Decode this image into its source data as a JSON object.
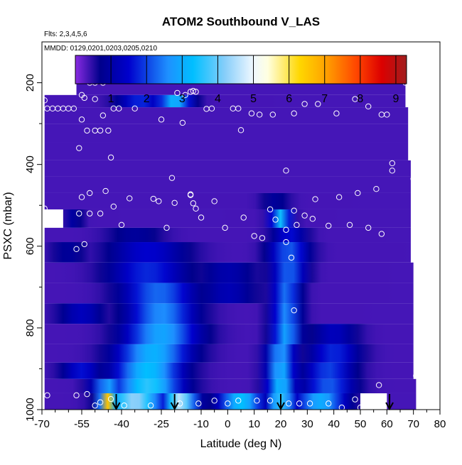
{
  "chart_data": {
    "type": "heatmap",
    "title": "ATOM2 Southbound V_LAS",
    "flights_note": "Flts: 2,3,4,5,6",
    "dates_note": "MMDD: 0129,0201,0203,0205,0210",
    "xlabel": "Latitude (deg N)",
    "ylabel": "PSXC (mbar)",
    "xlim": [
      -70,
      80
    ],
    "ylim": [
      1000,
      100
    ],
    "y_reversed": true,
    "x_ticks": [
      -70,
      -55,
      -40,
      -25,
      -10,
      0,
      10,
      20,
      30,
      40,
      50,
      60,
      70,
      80
    ],
    "x_tick_labels": [
      "-70",
      "-55",
      "-40",
      "-25",
      "-10",
      "0",
      "10",
      "20",
      "30",
      "40",
      "50",
      "60",
      "70",
      "80"
    ],
    "x_minor_ticks": [
      -65,
      -60,
      -50,
      -45,
      -35,
      -30,
      -20,
      -15,
      -5,
      5,
      15,
      25,
      35,
      45,
      55,
      65,
      75
    ],
    "y_ticks": [
      200,
      400,
      600,
      800,
      1000
    ],
    "y_tick_labels": [
      "200",
      "400",
      "600",
      "800",
      "1000"
    ],
    "y_minor_ticks": [
      300,
      500,
      700,
      900
    ],
    "colorbar": {
      "range": [
        0,
        9.3
      ],
      "ticks": [
        1,
        2,
        3,
        4,
        5,
        6,
        7,
        8,
        9
      ],
      "tick_labels": [
        "1",
        "2",
        "3",
        "4",
        "5",
        "6",
        "7",
        "8",
        "9"
      ],
      "colors": [
        "#8a2be2",
        "#00008b",
        "#0000cd",
        "#1e90ff",
        "#00bfff",
        "#87cefa",
        "#f0f8ff",
        "#ffffe0",
        "#ffd700",
        "#ffa500",
        "#ff4500",
        "#dc0000",
        "#a01e1e"
      ],
      "color_values": [
        0,
        0.7,
        1.5,
        2.6,
        3.3,
        4.2,
        5,
        5.4,
        6.3,
        7,
        7.9,
        8.6,
        9.3
      ]
    },
    "vertical_markers_lat": [
      -42,
      -20,
      20,
      61
    ],
    "layers": [
      {
        "p_top": 200,
        "p_bot": 230,
        "lat_start": -57,
        "lat_end": 67,
        "peaks": []
      },
      {
        "p_top": 230,
        "p_bot": 260,
        "lat_start": -69,
        "lat_end": 67,
        "peaks": [
          {
            "lat": -20,
            "w": 6,
            "v": 3.2
          },
          {
            "lat": -33,
            "w": 8,
            "v": 1.8
          }
        ]
      },
      {
        "p_top": 260,
        "p_bot": 300,
        "lat_start": -69,
        "lat_end": 68,
        "peaks": []
      },
      {
        "p_top": 300,
        "p_bot": 345,
        "lat_start": -69,
        "lat_end": 68,
        "peaks": []
      },
      {
        "p_top": 345,
        "p_bot": 390,
        "lat_start": -69,
        "lat_end": 68,
        "peaks": []
      },
      {
        "p_top": 390,
        "p_bot": 430,
        "lat_start": -69,
        "lat_end": 69,
        "peaks": []
      },
      {
        "p_top": 430,
        "p_bot": 470,
        "lat_start": -69,
        "lat_end": 69,
        "peaks": []
      },
      {
        "p_top": 470,
        "p_bot": 510,
        "lat_start": -69,
        "lat_end": 69,
        "peaks": [
          {
            "lat": 18,
            "w": 5,
            "v": 0.9
          }
        ]
      },
      {
        "p_top": 510,
        "p_bot": 555,
        "lat_start": -62,
        "lat_end": 69,
        "peaks": [
          {
            "lat": 20,
            "w": 3.5,
            "v": 3.4
          },
          {
            "lat": -58,
            "w": 3,
            "v": 1.0
          }
        ]
      },
      {
        "p_top": 555,
        "p_bot": 590,
        "lat_start": -69,
        "lat_end": 69,
        "peaks": [
          {
            "lat": -35,
            "w": 10,
            "v": 0.9
          },
          {
            "lat": 23,
            "w": 6,
            "v": 1.6
          }
        ]
      },
      {
        "p_top": 590,
        "p_bot": 640,
        "lat_start": -69,
        "lat_end": 69,
        "peaks": [
          {
            "lat": -30,
            "w": 14,
            "v": 1.5
          },
          {
            "lat": 23,
            "w": 7,
            "v": 2.2
          },
          {
            "lat": -60,
            "w": 6,
            "v": 0.9
          }
        ]
      },
      {
        "p_top": 640,
        "p_bot": 690,
        "lat_start": -69,
        "lat_end": 70,
        "peaks": [
          {
            "lat": -30,
            "w": 14,
            "v": 1.8
          },
          {
            "lat": 23,
            "w": 6,
            "v": 2.3
          },
          {
            "lat": 0,
            "w": 10,
            "v": 1.1
          }
        ]
      },
      {
        "p_top": 690,
        "p_bot": 740,
        "lat_start": -69,
        "lat_end": 70,
        "peaks": [
          {
            "lat": -26,
            "w": 13,
            "v": 2.3
          },
          {
            "lat": 22,
            "w": 5,
            "v": 2.4
          },
          {
            "lat": 0,
            "w": 10,
            "v": 1.2
          }
        ]
      },
      {
        "p_top": 740,
        "p_bot": 790,
        "lat_start": -69,
        "lat_end": 70,
        "peaks": [
          {
            "lat": -25,
            "w": 12,
            "v": 2.6
          },
          {
            "lat": 22,
            "w": 5,
            "v": 2.6
          },
          {
            "lat": -55,
            "w": 8,
            "v": 1.3
          }
        ]
      },
      {
        "p_top": 790,
        "p_bot": 840,
        "lat_start": -69,
        "lat_end": 70,
        "peaks": [
          {
            "lat": -25,
            "w": 13,
            "v": 2.9
          },
          {
            "lat": 22,
            "w": 5,
            "v": 2.9
          },
          {
            "lat": 40,
            "w": 8,
            "v": 1.3
          }
        ]
      },
      {
        "p_top": 840,
        "p_bot": 885,
        "lat_start": -69,
        "lat_end": 70,
        "peaks": [
          {
            "lat": -28,
            "w": 13,
            "v": 3.1
          },
          {
            "lat": 20,
            "w": 5,
            "v": 2.8
          },
          {
            "lat": 40,
            "w": 9,
            "v": 1.8
          }
        ]
      },
      {
        "p_top": 885,
        "p_bot": 925,
        "lat_start": -69,
        "lat_end": 70,
        "peaks": [
          {
            "lat": -30,
            "w": 12,
            "v": 3.3
          },
          {
            "lat": 20,
            "w": 5,
            "v": 3.1
          },
          {
            "lat": 38,
            "w": 9,
            "v": 2.0
          },
          {
            "lat": -55,
            "w": 7,
            "v": 1.6
          }
        ]
      },
      {
        "p_top": 925,
        "p_bot": 960,
        "lat_start": -69,
        "lat_end": 71,
        "peaks": [
          {
            "lat": -30,
            "w": 12,
            "v": 3.6
          },
          {
            "lat": -45,
            "w": 6,
            "v": 2.8
          },
          {
            "lat": 20,
            "w": 5,
            "v": 3.3
          },
          {
            "lat": 38,
            "w": 9,
            "v": 2.2
          }
        ]
      },
      {
        "p_top": 960,
        "p_bot": 1000,
        "lat_start": -69,
        "lat_end": 50,
        "peaks": [
          {
            "lat": -45,
            "w": 3,
            "v": 6.6
          },
          {
            "lat": -35,
            "w": 10,
            "v": 4.3
          },
          {
            "lat": -18,
            "w": 6,
            "v": 4.6
          },
          {
            "lat": 5,
            "w": 8,
            "v": 3.3
          },
          {
            "lat": 20,
            "w": 5,
            "v": 3.6
          },
          {
            "lat": 35,
            "w": 9,
            "v": 3.0
          }
        ]
      },
      {
        "p_top": 960,
        "p_bot": 1000,
        "lat_start": 60,
        "lat_end": 71,
        "peaks": []
      }
    ],
    "sample_points": [
      {
        "lat": -69,
        "p": 243
      },
      {
        "lat": -68,
        "p": 263
      },
      {
        "lat": -66,
        "p": 263
      },
      {
        "lat": -64,
        "p": 263
      },
      {
        "lat": -62,
        "p": 263
      },
      {
        "lat": -60,
        "p": 263
      },
      {
        "lat": -58,
        "p": 263
      },
      {
        "lat": -52,
        "p": 200
      },
      {
        "lat": -50,
        "p": 200
      },
      {
        "lat": -47,
        "p": 200
      },
      {
        "lat": -54,
        "p": 237
      },
      {
        "lat": -55,
        "p": 230
      },
      {
        "lat": -50,
        "p": 240
      },
      {
        "lat": -43,
        "p": 263
      },
      {
        "lat": -41,
        "p": 263
      },
      {
        "lat": -35,
        "p": 263
      },
      {
        "lat": -25,
        "p": 290
      },
      {
        "lat": -19,
        "p": 225
      },
      {
        "lat": -16,
        "p": 230
      },
      {
        "lat": -14,
        "p": 222
      },
      {
        "lat": -13,
        "p": 220
      },
      {
        "lat": -12,
        "p": 222
      },
      {
        "lat": -55,
        "p": 290
      },
      {
        "lat": -53,
        "p": 317
      },
      {
        "lat": -50,
        "p": 317
      },
      {
        "lat": -48,
        "p": 317
      },
      {
        "lat": -45,
        "p": 317
      },
      {
        "lat": -47,
        "p": 280
      },
      {
        "lat": -44,
        "p": 383
      },
      {
        "lat": -56,
        "p": 360
      },
      {
        "lat": -17,
        "p": 298
      },
      {
        "lat": -6,
        "p": 263
      },
      {
        "lat": 2,
        "p": 263
      },
      {
        "lat": 4,
        "p": 263
      },
      {
        "lat": 9,
        "p": 275
      },
      {
        "lat": 12,
        "p": 278
      },
      {
        "lat": 17,
        "p": 278
      },
      {
        "lat": 5,
        "p": 316
      },
      {
        "lat": 25,
        "p": 275
      },
      {
        "lat": 29,
        "p": 252
      },
      {
        "lat": 34,
        "p": 252
      },
      {
        "lat": 41,
        "p": 275
      },
      {
        "lat": 48,
        "p": 240
      },
      {
        "lat": 53,
        "p": 258
      },
      {
        "lat": 58,
        "p": 278
      },
      {
        "lat": 60,
        "p": 278
      },
      {
        "lat": 67,
        "p": 200
      },
      {
        "lat": 69,
        "p": 200
      },
      {
        "lat": 62,
        "p": 397
      },
      {
        "lat": 22,
        "p": 415
      },
      {
        "lat": -21,
        "p": 433
      },
      {
        "lat": -69,
        "p": 508
      },
      {
        "lat": -68,
        "p": 518
      },
      {
        "lat": -55,
        "p": 480
      },
      {
        "lat": -52,
        "p": 470
      },
      {
        "lat": -46,
        "p": 465
      },
      {
        "lat": -43,
        "p": 503
      },
      {
        "lat": -40,
        "p": 548
      },
      {
        "lat": -37,
        "p": 483
      },
      {
        "lat": -28,
        "p": 484
      },
      {
        "lat": -26,
        "p": 490
      },
      {
        "lat": -20,
        "p": 494
      },
      {
        "lat": -14,
        "p": 475
      },
      {
        "lat": -14,
        "p": 473
      },
      {
        "lat": -13,
        "p": 495
      },
      {
        "lat": -12,
        "p": 508
      },
      {
        "lat": -10,
        "p": 530
      },
      {
        "lat": -5,
        "p": 490
      },
      {
        "lat": -1,
        "p": 555
      },
      {
        "lat": 6,
        "p": 530
      },
      {
        "lat": 10,
        "p": 575
      },
      {
        "lat": 16,
        "p": 510
      },
      {
        "lat": 18,
        "p": 535
      },
      {
        "lat": 22,
        "p": 560
      },
      {
        "lat": 25,
        "p": 513
      },
      {
        "lat": 26,
        "p": 548
      },
      {
        "lat": 29,
        "p": 525
      },
      {
        "lat": 32,
        "p": 533
      },
      {
        "lat": 33,
        "p": 485
      },
      {
        "lat": 38,
        "p": 550
      },
      {
        "lat": 42,
        "p": 480
      },
      {
        "lat": 46,
        "p": 548
      },
      {
        "lat": 49,
        "p": 470
      },
      {
        "lat": 53,
        "p": 555
      },
      {
        "lat": 56,
        "p": 460
      },
      {
        "lat": 58,
        "p": 570
      },
      {
        "lat": 62,
        "p": 415
      },
      {
        "lat": 70,
        "p": 435
      },
      {
        "lat": -56,
        "p": 520
      },
      {
        "lat": -52,
        "p": 520
      },
      {
        "lat": -48,
        "p": 520
      },
      {
        "lat": -23,
        "p": 555
      },
      {
        "lat": -54,
        "p": 595
      },
      {
        "lat": -57,
        "p": 607
      },
      {
        "lat": 13,
        "p": 580
      },
      {
        "lat": 24,
        "p": 628
      },
      {
        "lat": 25,
        "p": 757
      },
      {
        "lat": 57,
        "p": 940
      },
      {
        "lat": 71,
        "p": 917
      },
      {
        "lat": -68,
        "p": 965
      },
      {
        "lat": -57,
        "p": 965
      },
      {
        "lat": -53,
        "p": 962
      },
      {
        "lat": -50,
        "p": 990
      },
      {
        "lat": -48,
        "p": 982
      },
      {
        "lat": -44,
        "p": 974
      },
      {
        "lat": -39,
        "p": 990
      },
      {
        "lat": -29,
        "p": 990
      },
      {
        "lat": -18,
        "p": 985
      },
      {
        "lat": -11,
        "p": 985
      },
      {
        "lat": -5,
        "p": 978
      },
      {
        "lat": 0,
        "p": 985
      },
      {
        "lat": 4,
        "p": 978
      },
      {
        "lat": 11,
        "p": 978
      },
      {
        "lat": 16,
        "p": 978
      },
      {
        "lat": 23,
        "p": 985
      },
      {
        "lat": 27,
        "p": 985
      },
      {
        "lat": 31,
        "p": 985
      },
      {
        "lat": 38,
        "p": 985
      },
      {
        "lat": 43,
        "p": 995
      },
      {
        "lat": 50,
        "p": 995
      },
      {
        "lat": 48,
        "p": 975
      },
      {
        "lat": -8,
        "p": 264
      },
      {
        "lat": 22,
        "p": 590
      }
    ]
  }
}
